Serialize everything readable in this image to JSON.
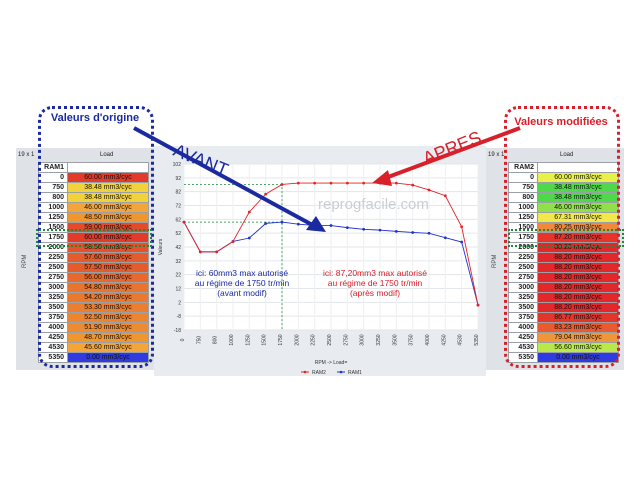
{
  "left_table": {
    "window_label": "19 x 1",
    "col_label": "Load",
    "map_name": "RAM1",
    "axis_label": "RPM",
    "rows": [
      {
        "rpm": "0",
        "value": "60.00 mm3/cyc",
        "color": "#e23b2a"
      },
      {
        "rpm": "750",
        "value": "38.48 mm3/cyc",
        "color": "#f2d23a"
      },
      {
        "rpm": "800",
        "value": "38.48 mm3/cyc",
        "color": "#f2d23a"
      },
      {
        "rpm": "1000",
        "value": "46.00 mm3/cyc",
        "color": "#f3a53a"
      },
      {
        "rpm": "1250",
        "value": "48.50 mm3/cyc",
        "color": "#f0962f"
      },
      {
        "rpm": "1500",
        "value": "59.00 mm3/cyc",
        "color": "#e34b2a"
      },
      {
        "rpm": "1750",
        "value": "60.00 mm3/cyc",
        "color": "#e23b2a"
      },
      {
        "rpm": "2000",
        "value": "58.50 mm3/cyc",
        "color": "#e4512b"
      },
      {
        "rpm": "2250",
        "value": "57.60 mm3/cyc",
        "color": "#e55c2c"
      },
      {
        "rpm": "2500",
        "value": "57.50 mm3/cyc",
        "color": "#e55c2c"
      },
      {
        "rpm": "2750",
        "value": "56.00 mm3/cyc",
        "color": "#e8692d"
      },
      {
        "rpm": "3000",
        "value": "54.80 mm3/cyc",
        "color": "#ea742e"
      },
      {
        "rpm": "3250",
        "value": "54.20 mm3/cyc",
        "color": "#ea782e"
      },
      {
        "rpm": "3500",
        "value": "53.30 mm3/cyc",
        "color": "#ec7f2f"
      },
      {
        "rpm": "3750",
        "value": "52.50 mm3/cyc",
        "color": "#ed842f"
      },
      {
        "rpm": "4000",
        "value": "51.90 mm3/cyc",
        "color": "#ee8a2f"
      },
      {
        "rpm": "4250",
        "value": "48.70 mm3/cyc",
        "color": "#f0962f"
      },
      {
        "rpm": "4530",
        "value": "45.60 mm3/cyc",
        "color": "#f3a53a"
      },
      {
        "rpm": "5350",
        "value": "0.00 mm3/cyc",
        "color": "#2f3ae0"
      }
    ]
  },
  "right_table": {
    "window_label": "19 x 1",
    "col_label": "Load",
    "map_name": "RAM2",
    "axis_label": "RPM",
    "rows": [
      {
        "rpm": "0",
        "value": "60.00 mm3/cyc",
        "color": "#e8f04a"
      },
      {
        "rpm": "750",
        "value": "38.48 mm3/cyc",
        "color": "#4fd84a"
      },
      {
        "rpm": "800",
        "value": "38.48 mm3/cyc",
        "color": "#4fd84a"
      },
      {
        "rpm": "1000",
        "value": "46.00 mm3/cyc",
        "color": "#8fe04a"
      },
      {
        "rpm": "1250",
        "value": "67.31 mm3/cyc",
        "color": "#f2e84a"
      },
      {
        "rpm": "1500",
        "value": "80.25 mm3/cyc",
        "color": "#f08a3a"
      },
      {
        "rpm": "1750",
        "value": "87.20 mm3/cyc",
        "color": "#e8332a"
      },
      {
        "rpm": "2000",
        "value": "88.20 mm3/cyc",
        "color": "#e2282a"
      },
      {
        "rpm": "2250",
        "value": "88.20 mm3/cyc",
        "color": "#e2282a"
      },
      {
        "rpm": "2500",
        "value": "88.20 mm3/cyc",
        "color": "#e2282a"
      },
      {
        "rpm": "2750",
        "value": "88.20 mm3/cyc",
        "color": "#e2282a"
      },
      {
        "rpm": "3000",
        "value": "88.20 mm3/cyc",
        "color": "#e2282a"
      },
      {
        "rpm": "3250",
        "value": "88.20 mm3/cyc",
        "color": "#e2282a"
      },
      {
        "rpm": "3500",
        "value": "88.20 mm3/cyc",
        "color": "#e2282a"
      },
      {
        "rpm": "3750",
        "value": "86.77 mm3/cyc",
        "color": "#e4352a"
      },
      {
        "rpm": "4000",
        "value": "83.23 mm3/cyc",
        "color": "#ea5a2e"
      },
      {
        "rpm": "4250",
        "value": "79.04 mm3/cyc",
        "color": "#f0963a"
      },
      {
        "rpm": "4530",
        "value": "56.60 mm3/cyc",
        "color": "#b8e84a"
      },
      {
        "rpm": "5350",
        "value": "0.00 mm3/cyc",
        "color": "#2f3ae0"
      }
    ]
  },
  "callouts": {
    "left_title": "Valeurs d'origine",
    "right_title": "Valeurs modifiées",
    "avant": "AVANT",
    "apres": "APRES",
    "left_annotation": "ici: 60mm3 max autorisé au régime de 1750 tr/min (avant modif)",
    "right_annotation": "ici: 87,20mm3 max autorisé au régime de 1750 tr/min (après modif)",
    "watermark": "reprogfacile.com"
  },
  "chart_data": {
    "type": "line",
    "x": [
      "0",
      "750",
      "800",
      "1000",
      "1250",
      "1500",
      "1750",
      "2000",
      "2250",
      "2500",
      "2750",
      "3000",
      "3250",
      "3500",
      "3750",
      "4000",
      "4250",
      "4530",
      "5350"
    ],
    "series": [
      {
        "name": "RAM1",
        "color": "#2233cc",
        "values": [
          60,
          38.48,
          38.48,
          46,
          48.5,
          59,
          60,
          58.5,
          57.6,
          57.5,
          56,
          54.8,
          54.2,
          53.3,
          52.5,
          51.9,
          48.7,
          45.6,
          0
        ]
      },
      {
        "name": "RAM2",
        "color": "#e0242a",
        "values": [
          60,
          38.48,
          38.48,
          46,
          67.31,
          80.25,
          87.2,
          88.2,
          88.2,
          88.2,
          88.2,
          88.2,
          88.2,
          88.2,
          86.77,
          83.23,
          79.04,
          56.6,
          0
        ]
      }
    ],
    "y_ticks": [
      "102",
      "92",
      "82",
      "72",
      "62",
      "52",
      "42",
      "32",
      "22",
      "12",
      "2",
      "-8",
      "-18"
    ],
    "ylim": [
      -18,
      102
    ],
    "xlabel": "RPM -> Load=",
    "ylabel": "Valeurs",
    "legend": [
      "RAM2",
      "RAM1"
    ],
    "grid": true
  }
}
